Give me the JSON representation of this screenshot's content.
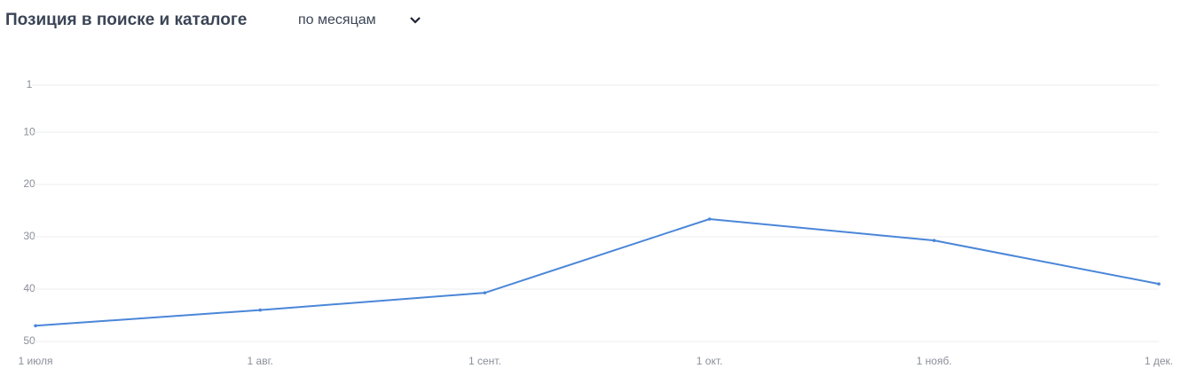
{
  "chart_data": {
    "type": "line",
    "title": "Позиция в поиске и каталоге",
    "period_select": "по месяцам",
    "categories": [
      "1 июля",
      "1 авг.",
      "1 сент.",
      "1 окт.",
      "1 нояб.",
      "1 дек."
    ],
    "values": [
      47,
      44,
      40.7,
      26.6,
      30.7,
      39
    ],
    "color": "#4a86d8",
    "ylim": [
      50,
      1
    ],
    "yticks": [
      1,
      10,
      20,
      30,
      40,
      50
    ],
    "grid": true
  }
}
